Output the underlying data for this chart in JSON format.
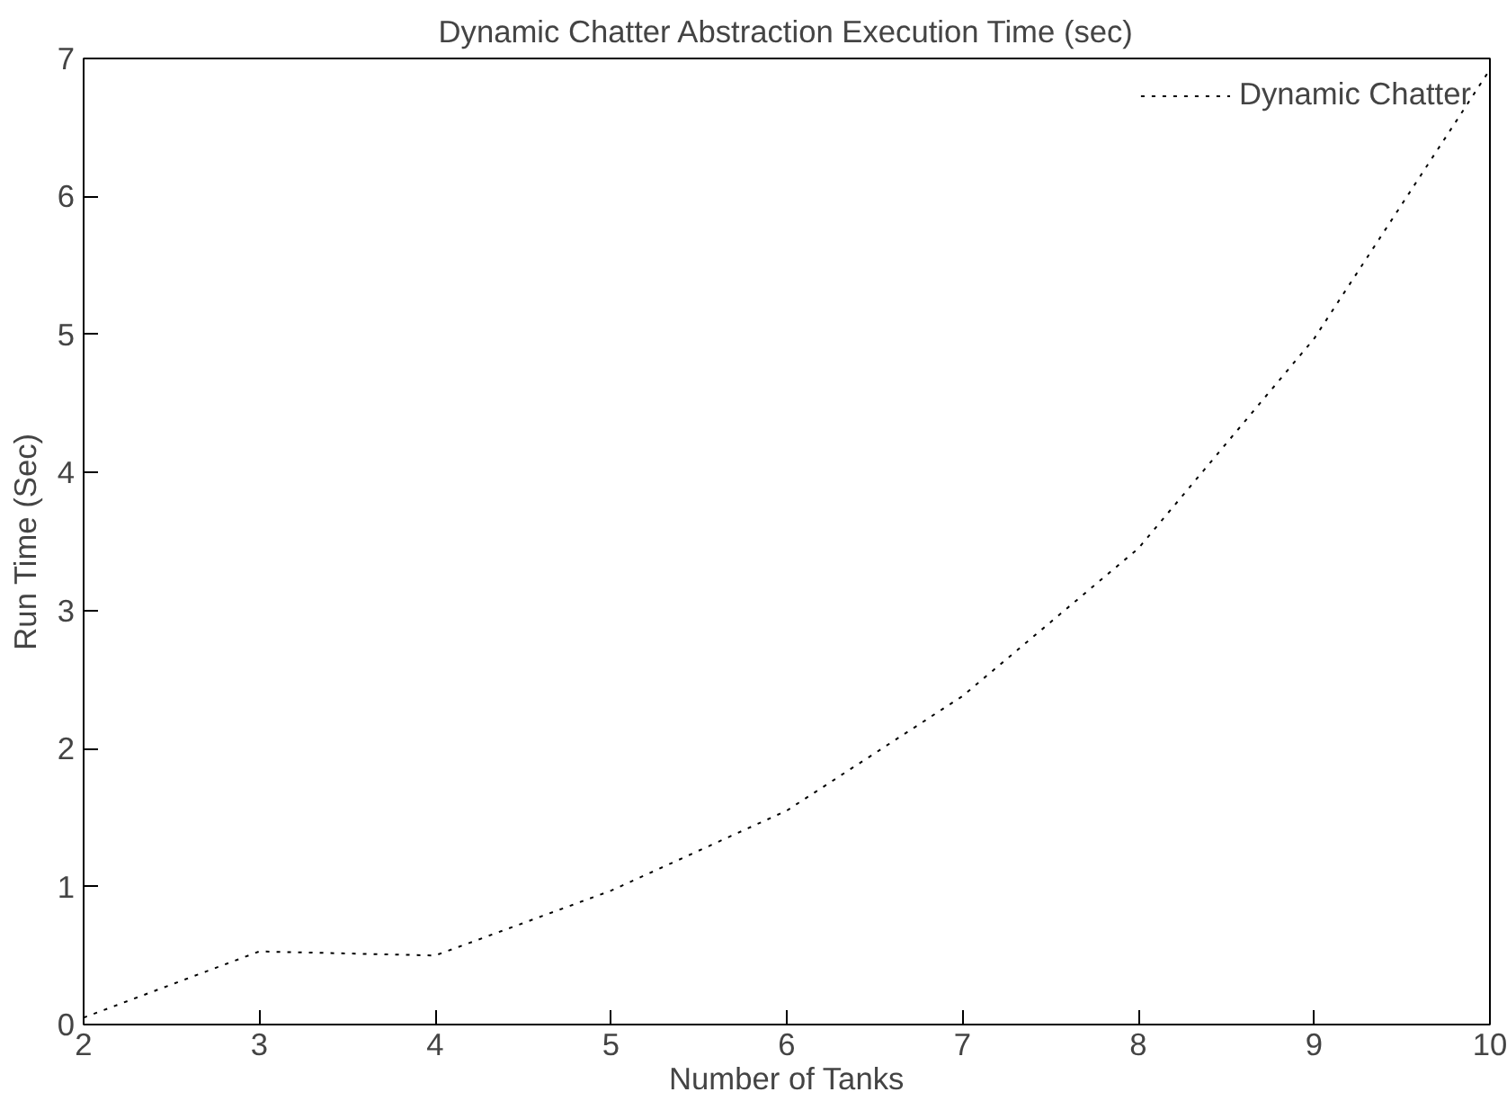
{
  "chart_data": {
    "type": "line",
    "title": "Dynamic Chatter Abstraction Execution Time (sec)",
    "xlabel": "Number of Tanks",
    "ylabel": "Run Time (Sec)",
    "x": [
      2,
      3,
      4,
      5,
      6,
      7,
      8,
      9,
      10
    ],
    "series": [
      {
        "name": "Dynamic Chatter",
        "color": "#000000",
        "line_style": "dotted",
        "values": [
          0.05,
          0.53,
          0.5,
          0.97,
          1.55,
          2.38,
          3.45,
          4.97,
          6.92
        ]
      }
    ],
    "xlim": [
      2,
      10
    ],
    "ylim": [
      0,
      7
    ],
    "xticks": [
      2,
      3,
      4,
      5,
      6,
      7,
      8,
      9,
      10
    ],
    "yticks": [
      0,
      1,
      2,
      3,
      4,
      5,
      6,
      7
    ],
    "grid": false,
    "legend": "top right",
    "marker": "none"
  }
}
